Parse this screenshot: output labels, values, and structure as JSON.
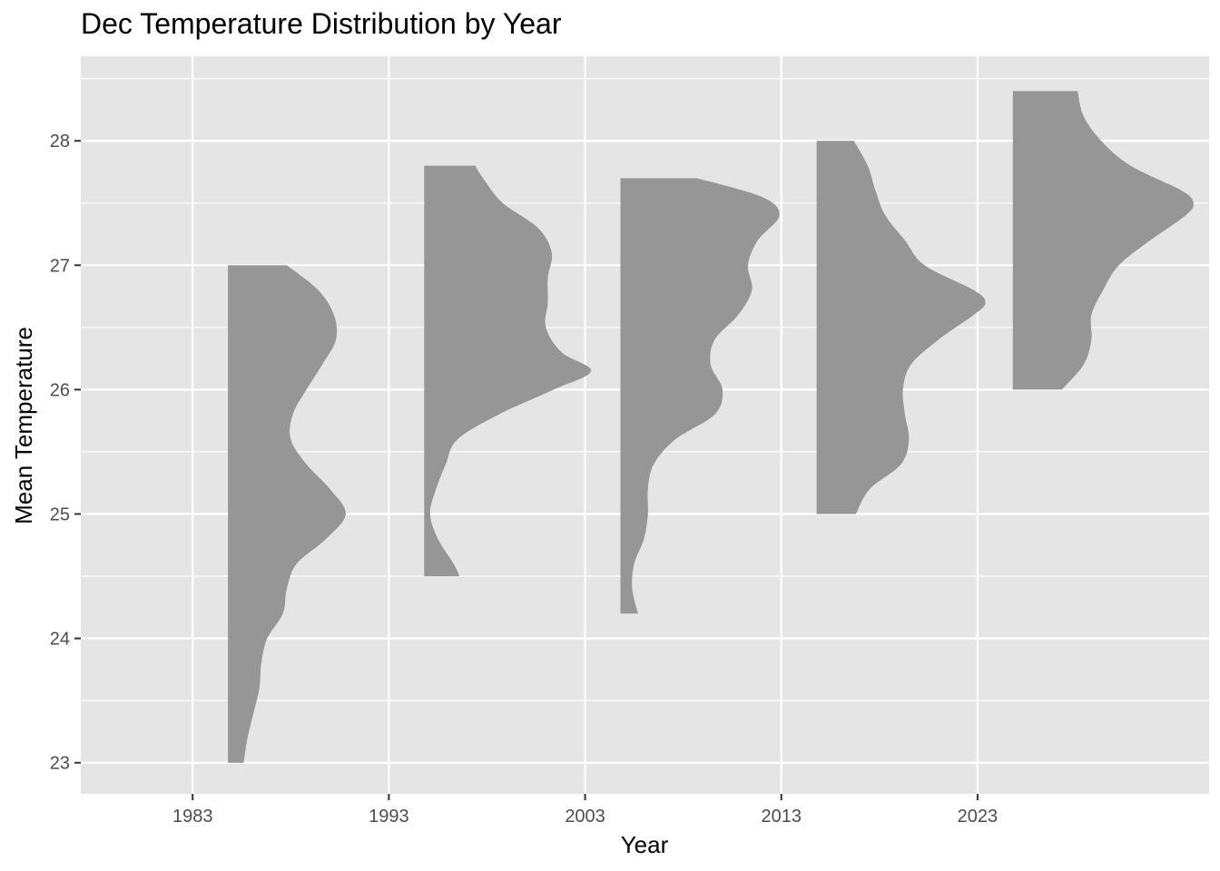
{
  "chart_data": {
    "type": "half-violin",
    "title": "Dec Temperature Distribution by Year",
    "xlabel": "Year",
    "ylabel": "Mean Temperature",
    "x_ticks": [
      1983,
      1993,
      2003,
      2013,
      2023
    ],
    "y_ticks": [
      23,
      24,
      25,
      26,
      27,
      28
    ],
    "xlim": [
      1977.3,
      2034.8
    ],
    "ylim": [
      22.75,
      28.68
    ],
    "grid": true,
    "fill_color": "#969696",
    "panel_color": "#e5e5e5",
    "groups": [
      {
        "x": 1984.8,
        "ymin": 23.0,
        "ymax": 27.0,
        "density": [
          [
            23.0,
            0.8
          ],
          [
            23.2,
            1.0
          ],
          [
            23.4,
            1.3
          ],
          [
            23.6,
            1.6
          ],
          [
            23.8,
            1.7
          ],
          [
            24.0,
            2.0
          ],
          [
            24.2,
            2.8
          ],
          [
            24.4,
            3.0
          ],
          [
            24.6,
            3.5
          ],
          [
            24.8,
            5.0
          ],
          [
            25.0,
            6.0
          ],
          [
            25.2,
            5.2
          ],
          [
            25.4,
            4.0
          ],
          [
            25.6,
            3.2
          ],
          [
            25.8,
            3.3
          ],
          [
            26.0,
            4.0
          ],
          [
            26.2,
            4.8
          ],
          [
            26.4,
            5.5
          ],
          [
            26.6,
            5.4
          ],
          [
            26.8,
            4.6
          ],
          [
            27.0,
            3.0
          ]
        ]
      },
      {
        "x": 1994.8,
        "ymin": 24.5,
        "ymax": 27.8,
        "density": [
          [
            24.5,
            1.8
          ],
          [
            24.6,
            1.5
          ],
          [
            24.8,
            0.7
          ],
          [
            25.0,
            0.3
          ],
          [
            25.2,
            0.6
          ],
          [
            25.4,
            1.1
          ],
          [
            25.6,
            1.7
          ],
          [
            25.8,
            3.8
          ],
          [
            26.0,
            6.6
          ],
          [
            26.15,
            8.5
          ],
          [
            26.3,
            7.0
          ],
          [
            26.5,
            6.2
          ],
          [
            26.7,
            6.3
          ],
          [
            26.9,
            6.3
          ],
          [
            27.1,
            6.5
          ],
          [
            27.3,
            5.8
          ],
          [
            27.5,
            4.0
          ],
          [
            27.7,
            3.0
          ],
          [
            27.8,
            2.6
          ]
        ]
      },
      {
        "x": 2004.8,
        "ymin": 24.2,
        "ymax": 27.7,
        "density": [
          [
            24.2,
            0.9
          ],
          [
            24.4,
            0.6
          ],
          [
            24.6,
            0.7
          ],
          [
            24.8,
            1.2
          ],
          [
            25.0,
            1.4
          ],
          [
            25.2,
            1.4
          ],
          [
            25.4,
            1.7
          ],
          [
            25.6,
            2.8
          ],
          [
            25.8,
            4.8
          ],
          [
            26.0,
            5.2
          ],
          [
            26.2,
            4.6
          ],
          [
            26.4,
            4.8
          ],
          [
            26.6,
            6.0
          ],
          [
            26.8,
            6.7
          ],
          [
            27.0,
            6.5
          ],
          [
            27.2,
            7.0
          ],
          [
            27.4,
            8.1
          ],
          [
            27.55,
            7.2
          ],
          [
            27.7,
            3.9
          ]
        ]
      },
      {
        "x": 2014.8,
        "ymin": 25.0,
        "ymax": 28.0,
        "density": [
          [
            25.0,
            2.0
          ],
          [
            25.2,
            2.7
          ],
          [
            25.4,
            4.3
          ],
          [
            25.6,
            4.7
          ],
          [
            25.8,
            4.5
          ],
          [
            26.0,
            4.4
          ],
          [
            26.2,
            4.8
          ],
          [
            26.4,
            6.2
          ],
          [
            26.6,
            8.0
          ],
          [
            26.7,
            8.6
          ],
          [
            26.8,
            8.0
          ],
          [
            27.0,
            5.5
          ],
          [
            27.2,
            4.5
          ],
          [
            27.4,
            3.5
          ],
          [
            27.6,
            3.0
          ],
          [
            27.8,
            2.6
          ],
          [
            28.0,
            1.9
          ]
        ]
      },
      {
        "x": 2024.8,
        "ymin": 26.0,
        "ymax": 28.4,
        "density": [
          [
            26.0,
            2.5
          ],
          [
            26.2,
            3.6
          ],
          [
            26.4,
            4.0
          ],
          [
            26.6,
            4.0
          ],
          [
            26.8,
            4.6
          ],
          [
            27.0,
            5.4
          ],
          [
            27.2,
            7.0
          ],
          [
            27.4,
            8.8
          ],
          [
            27.5,
            9.2
          ],
          [
            27.6,
            8.6
          ],
          [
            27.8,
            6.0
          ],
          [
            28.0,
            4.5
          ],
          [
            28.2,
            3.6
          ],
          [
            28.4,
            3.3
          ]
        ]
      }
    ]
  }
}
